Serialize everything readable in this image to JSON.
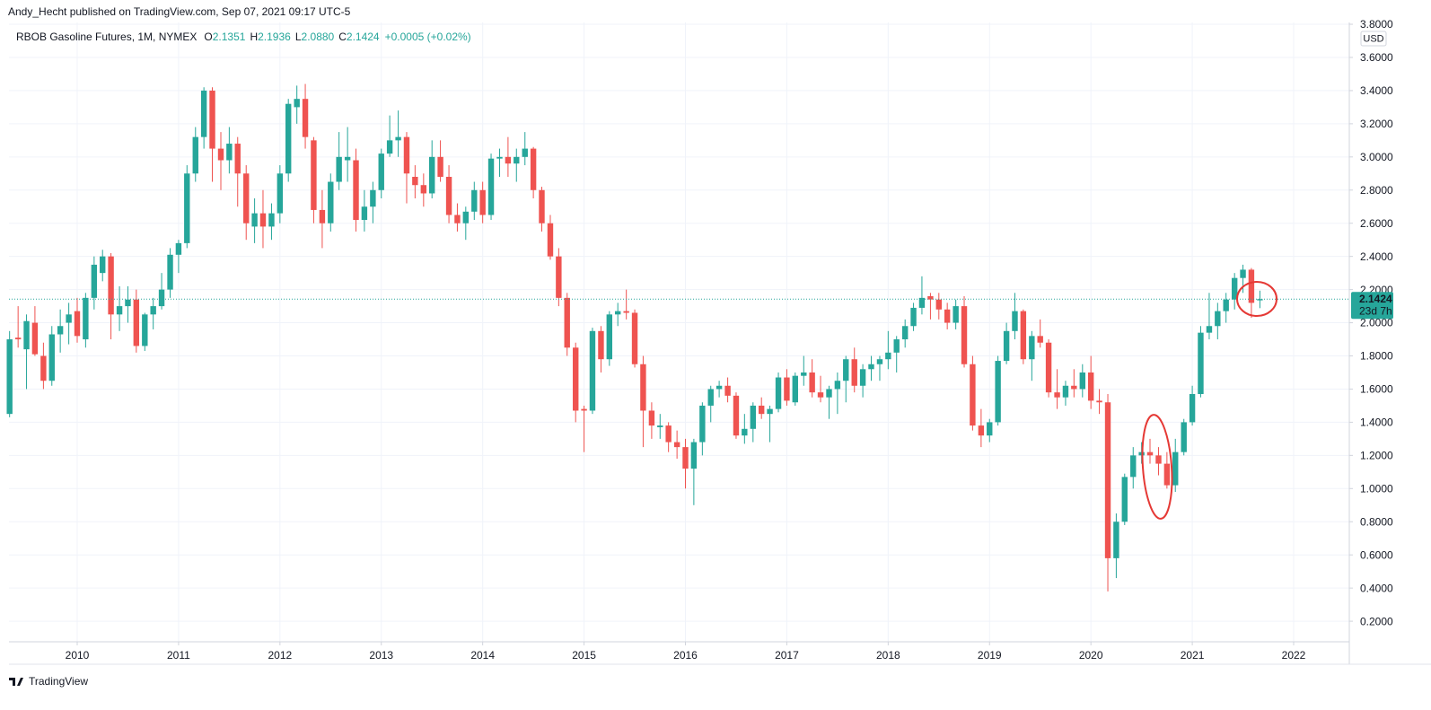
{
  "page": {
    "publisher": "Andy_Hecht published on TradingView.com, Sep 07, 2021 09:17 UTC-5",
    "footer": "TradingView"
  },
  "chart_data": {
    "type": "candlestick",
    "title": "RBOB Gasoline Futures, 1M, NYMEX",
    "ohlc_header": [
      {
        "key": "O",
        "text": "2.1351"
      },
      {
        "key": "H",
        "text": "2.1936"
      },
      {
        "key": "L",
        "text": "2.0880"
      },
      {
        "key": "C",
        "text": "2.1424"
      }
    ],
    "change": "+0.0005 (+0.02%)",
    "currency": "USD",
    "countdown": "23d 7h",
    "up_color": "#26a69a",
    "down_color": "#ef5350",
    "grid": true,
    "xlim": [
      2009.327,
      2022.549
    ],
    "xticks": [
      2010,
      2011,
      2012,
      2013,
      2014,
      2015,
      2016,
      2017,
      2018,
      2019,
      2020,
      2021,
      2022
    ],
    "ylim": [
      0.076,
      3.811
    ],
    "yticks": [
      {
        "value": 0.2,
        "label": "0.2000"
      },
      {
        "value": 0.4,
        "label": "0.4000"
      },
      {
        "value": 0.6,
        "label": "0.6000"
      },
      {
        "value": 0.8,
        "label": "0.8000"
      },
      {
        "value": 1.0,
        "label": "1.0000"
      },
      {
        "value": 1.2,
        "label": "1.2000"
      },
      {
        "value": 1.4,
        "label": "1.4000"
      },
      {
        "value": 1.6,
        "label": "1.6000"
      },
      {
        "value": 1.8,
        "label": "1.8000"
      },
      {
        "value": 2.0,
        "label": "2.0000"
      },
      {
        "value": 2.2,
        "label": "2.2000"
      },
      {
        "value": 2.4,
        "label": "2.4000"
      },
      {
        "value": 2.6,
        "label": "2.6000"
      },
      {
        "value": 2.8,
        "label": "2.8000"
      },
      {
        "value": 3.0,
        "label": "3.0000"
      },
      {
        "value": 3.2,
        "label": "3.2000"
      },
      {
        "value": 3.4,
        "label": "3.4000"
      },
      {
        "value": 3.6,
        "label": "3.6000"
      },
      {
        "value": 3.8,
        "label": "3.8000"
      }
    ],
    "x": [
      2009.333,
      2009.417,
      2009.5,
      2009.583,
      2009.667,
      2009.75,
      2009.833,
      2009.917,
      2010,
      2010.083,
      2010.167,
      2010.25,
      2010.333,
      2010.417,
      2010.5,
      2010.583,
      2010.667,
      2010.75,
      2010.833,
      2010.917,
      2011,
      2011.083,
      2011.167,
      2011.25,
      2011.333,
      2011.417,
      2011.5,
      2011.583,
      2011.667,
      2011.75,
      2011.833,
      2011.917,
      2012,
      2012.083,
      2012.167,
      2012.25,
      2012.333,
      2012.417,
      2012.5,
      2012.583,
      2012.667,
      2012.75,
      2012.833,
      2012.917,
      2013,
      2013.083,
      2013.167,
      2013.25,
      2013.333,
      2013.417,
      2013.5,
      2013.583,
      2013.667,
      2013.75,
      2013.833,
      2013.917,
      2014,
      2014.083,
      2014.167,
      2014.25,
      2014.333,
      2014.417,
      2014.5,
      2014.583,
      2014.667,
      2014.75,
      2014.833,
      2014.917,
      2015,
      2015.083,
      2015.167,
      2015.25,
      2015.333,
      2015.417,
      2015.5,
      2015.583,
      2015.667,
      2015.75,
      2015.833,
      2015.917,
      2016,
      2016.083,
      2016.167,
      2016.25,
      2016.333,
      2016.417,
      2016.5,
      2016.583,
      2016.667,
      2016.75,
      2016.833,
      2016.917,
      2017,
      2017.083,
      2017.167,
      2017.25,
      2017.333,
      2017.417,
      2017.5,
      2017.583,
      2017.667,
      2017.75,
      2017.833,
      2017.917,
      2018,
      2018.083,
      2018.167,
      2018.25,
      2018.333,
      2018.417,
      2018.5,
      2018.583,
      2018.667,
      2018.75,
      2018.833,
      2018.917,
      2019,
      2019.083,
      2019.167,
      2019.25,
      2019.333,
      2019.417,
      2019.5,
      2019.583,
      2019.667,
      2019.75,
      2019.833,
      2019.917,
      2020,
      2020.083,
      2020.167,
      2020.25,
      2020.333,
      2020.417,
      2020.5,
      2020.583,
      2020.667,
      2020.75,
      2020.833,
      2020.917,
      2021,
      2021.083,
      2021.167,
      2021.25,
      2021.333,
      2021.417,
      2021.5,
      2021.583,
      2021.667
    ],
    "open": [
      1.45,
      1.91,
      1.84,
      2.0,
      1.8,
      1.65,
      1.93,
      2.0,
      2.07,
      1.9,
      2.15,
      2.3,
      2.4,
      2.05,
      2.1,
      2.14,
      1.86,
      2.05,
      2.1,
      2.2,
      2.41,
      2.48,
      2.9,
      3.12,
      3.4,
      3.05,
      2.98,
      3.08,
      2.9,
      2.58,
      2.66,
      2.58,
      2.66,
      2.9,
      3.3,
      3.35,
      3.1,
      2.68,
      2.6,
      2.85,
      2.98,
      2.98,
      2.62,
      2.7,
      2.8,
      3.02,
      3.1,
      3.12,
      2.88,
      2.83,
      2.78,
      3.0,
      2.88,
      2.65,
      2.6,
      2.67,
      2.8,
      2.65,
      2.99,
      3.0,
      2.96,
      3.0,
      3.05,
      2.8,
      2.6,
      2.4,
      2.15,
      1.85,
      1.48,
      1.47,
      1.95,
      1.78,
      2.05,
      2.07,
      2.06,
      1.75,
      1.47,
      1.37,
      1.38,
      1.28,
      1.25,
      1.12,
      1.28,
      1.5,
      1.6,
      1.62,
      1.56,
      1.32,
      1.36,
      1.5,
      1.45,
      1.48,
      1.67,
      1.52,
      1.68,
      1.7,
      1.58,
      1.55,
      1.6,
      1.65,
      1.78,
      1.62,
      1.72,
      1.75,
      1.78,
      1.82,
      1.9,
      1.98,
      2.09,
      2.16,
      2.14,
      2.08,
      2.0,
      2.1,
      1.75,
      1.38,
      1.32,
      1.4,
      1.77,
      1.95,
      2.07,
      1.78,
      1.92,
      1.88,
      1.58,
      1.55,
      1.62,
      1.6,
      1.7,
      1.53,
      1.52,
      0.58,
      0.8,
      1.07,
      1.2,
      1.22,
      1.2,
      1.15,
      1.02,
      1.22,
      1.4,
      1.57,
      1.94,
      1.98,
      2.07,
      2.14,
      2.27,
      2.32,
      2.1351
    ],
    "high": [
      1.95,
      2.1,
      2.05,
      2.1,
      1.88,
      1.98,
      2.08,
      2.12,
      2.15,
      2.18,
      2.4,
      2.44,
      2.42,
      2.22,
      2.22,
      2.2,
      2.06,
      2.15,
      2.3,
      2.45,
      2.5,
      2.95,
      3.18,
      3.42,
      3.42,
      3.15,
      3.18,
      3.12,
      2.95,
      2.75,
      2.8,
      2.72,
      2.95,
      3.35,
      3.43,
      3.44,
      3.12,
      2.8,
      2.9,
      3.15,
      3.18,
      3.05,
      2.8,
      2.85,
      3.05,
      3.25,
      3.28,
      3.15,
      2.95,
      2.9,
      3.1,
      3.1,
      2.95,
      2.72,
      2.7,
      2.85,
      2.85,
      3.02,
      3.05,
      3.12,
      3.05,
      3.15,
      3.06,
      2.82,
      2.65,
      2.45,
      2.18,
      1.88,
      1.5,
      1.97,
      1.98,
      2.07,
      2.12,
      2.2,
      2.08,
      1.8,
      1.52,
      1.45,
      1.4,
      1.35,
      1.3,
      1.3,
      1.52,
      1.62,
      1.65,
      1.67,
      1.58,
      1.45,
      1.52,
      1.55,
      1.5,
      1.7,
      1.72,
      1.7,
      1.8,
      1.78,
      1.68,
      1.62,
      1.7,
      1.8,
      1.85,
      1.75,
      1.8,
      1.8,
      1.95,
      1.92,
      2.02,
      2.12,
      2.28,
      2.18,
      2.18,
      2.12,
      2.14,
      2.16,
      1.8,
      1.48,
      1.42,
      1.8,
      2.0,
      2.18,
      2.08,
      1.95,
      2.02,
      1.9,
      1.72,
      1.65,
      1.72,
      1.75,
      1.8,
      1.6,
      1.57,
      0.85,
      1.09,
      1.25,
      1.28,
      1.3,
      1.25,
      1.22,
      1.3,
      1.42,
      1.62,
      1.98,
      2.18,
      2.12,
      2.18,
      2.3,
      2.35,
      2.33,
      2.1936
    ],
    "low": [
      1.43,
      1.85,
      1.6,
      1.8,
      1.6,
      1.62,
      1.82,
      1.87,
      1.88,
      1.85,
      2.08,
      2.25,
      1.9,
      1.95,
      2.0,
      1.82,
      1.83,
      1.96,
      2.08,
      2.15,
      2.3,
      2.45,
      2.85,
      3.05,
      2.85,
      2.8,
      2.9,
      2.7,
      2.5,
      2.48,
      2.45,
      2.5,
      2.6,
      2.85,
      3.2,
      3.05,
      2.6,
      2.45,
      2.55,
      2.8,
      2.85,
      2.55,
      2.55,
      2.6,
      2.75,
      3.0,
      3.0,
      2.72,
      2.75,
      2.7,
      2.75,
      2.85,
      2.6,
      2.55,
      2.5,
      2.62,
      2.6,
      2.62,
      2.88,
      2.88,
      2.85,
      2.95,
      2.75,
      2.55,
      2.38,
      2.1,
      1.8,
      1.4,
      1.22,
      1.45,
      1.7,
      1.74,
      1.98,
      2.02,
      1.73,
      1.25,
      1.3,
      1.3,
      1.22,
      1.18,
      1.0,
      0.9,
      1.2,
      1.4,
      1.55,
      1.52,
      1.3,
      1.27,
      1.28,
      1.42,
      1.28,
      1.46,
      1.5,
      1.5,
      1.62,
      1.55,
      1.52,
      1.42,
      1.45,
      1.52,
      1.58,
      1.55,
      1.65,
      1.65,
      1.72,
      1.7,
      1.85,
      1.95,
      2.05,
      2.02,
      2.02,
      1.96,
      1.96,
      1.73,
      1.35,
      1.25,
      1.28,
      1.38,
      1.75,
      1.9,
      1.75,
      1.65,
      1.85,
      1.55,
      1.48,
      1.5,
      1.55,
      1.55,
      1.48,
      1.45,
      0.38,
      0.46,
      0.78,
      1.0,
      1.15,
      1.15,
      1.08,
      1.0,
      0.98,
      1.2,
      1.38,
      1.55,
      1.9,
      1.9,
      2.0,
      2.08,
      2.18,
      2.03,
      2.088
    ],
    "close": [
      1.9,
      1.9,
      2.01,
      1.81,
      1.65,
      1.93,
      1.98,
      2.05,
      1.92,
      2.15,
      2.35,
      2.4,
      2.05,
      2.1,
      2.14,
      1.86,
      2.05,
      2.1,
      2.2,
      2.41,
      2.48,
      2.9,
      3.12,
      3.4,
      3.05,
      2.98,
      3.08,
      2.9,
      2.6,
      2.66,
      2.58,
      2.66,
      2.9,
      3.32,
      3.35,
      3.12,
      2.68,
      2.6,
      2.85,
      3.0,
      3.0,
      2.62,
      2.7,
      2.8,
      3.02,
      3.1,
      3.12,
      2.9,
      2.83,
      2.78,
      3.0,
      2.88,
      2.65,
      2.6,
      2.67,
      2.8,
      2.65,
      2.99,
      3.0,
      2.96,
      3.0,
      3.05,
      2.8,
      2.6,
      2.4,
      2.15,
      1.85,
      1.47,
      1.47,
      1.95,
      1.78,
      2.05,
      2.07,
      2.06,
      1.75,
      1.47,
      1.38,
      1.38,
      1.28,
      1.25,
      1.12,
      1.28,
      1.5,
      1.6,
      1.62,
      1.56,
      1.32,
      1.36,
      1.5,
      1.45,
      1.48,
      1.67,
      1.53,
      1.68,
      1.7,
      1.58,
      1.55,
      1.6,
      1.65,
      1.78,
      1.62,
      1.72,
      1.75,
      1.78,
      1.82,
      1.9,
      1.98,
      2.09,
      2.15,
      2.14,
      2.08,
      2.0,
      2.1,
      1.75,
      1.38,
      1.32,
      1.4,
      1.77,
      1.95,
      2.07,
      1.78,
      1.92,
      1.88,
      1.58,
      1.55,
      1.62,
      1.6,
      1.7,
      1.53,
      1.52,
      0.58,
      0.8,
      1.07,
      1.2,
      1.22,
      1.2,
      1.15,
      1.02,
      1.22,
      1.4,
      1.57,
      1.94,
      1.98,
      2.07,
      2.14,
      2.27,
      2.32,
      2.12,
      2.1424
    ]
  }
}
